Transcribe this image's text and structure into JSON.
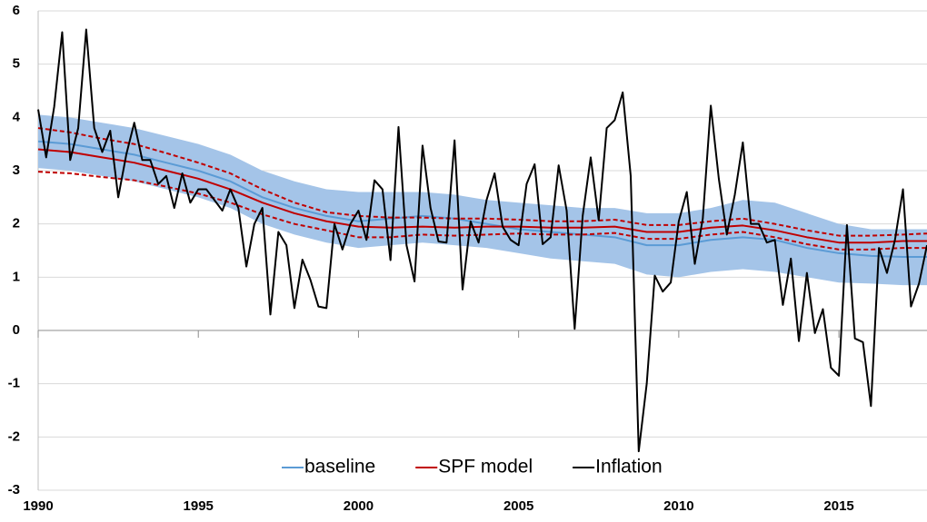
{
  "chart_data": {
    "type": "line",
    "xlim": [
      1990,
      2017.75
    ],
    "ylim": [
      -3,
      6
    ],
    "xticks": [
      1990,
      1995,
      2000,
      2005,
      2010,
      2015
    ],
    "yticks": [
      -3,
      -2,
      -1,
      0,
      1,
      2,
      3,
      4,
      5,
      6
    ],
    "grid": true,
    "legend": "bottom",
    "series": [
      {
        "name": "baseline",
        "color": "#5b9bd5",
        "band_color": "#a4c4e8",
        "x": [
          1990,
          1991,
          1992,
          1993,
          1994,
          1995,
          1996,
          1997,
          1998,
          1999,
          2000,
          2001,
          2002,
          2003,
          2004,
          2005,
          2006,
          2007,
          2008,
          2009,
          2010,
          2011,
          2012,
          2013,
          2014,
          2015,
          2016,
          2017,
          2017.75
        ],
        "values": [
          3.55,
          3.5,
          3.4,
          3.3,
          3.15,
          3.0,
          2.8,
          2.5,
          2.3,
          2.15,
          2.05,
          2.1,
          2.15,
          2.1,
          2.0,
          1.9,
          1.85,
          1.8,
          1.75,
          1.6,
          1.6,
          1.7,
          1.75,
          1.7,
          1.55,
          1.45,
          1.4,
          1.38,
          1.38
        ],
        "upper": [
          4.05,
          4.0,
          3.9,
          3.8,
          3.65,
          3.5,
          3.3,
          3.0,
          2.8,
          2.65,
          2.6,
          2.6,
          2.6,
          2.55,
          2.45,
          2.4,
          2.35,
          2.3,
          2.3,
          2.2,
          2.2,
          2.3,
          2.45,
          2.4,
          2.2,
          2.0,
          1.9,
          1.9,
          1.9
        ],
        "lower": [
          3.05,
          3.0,
          2.9,
          2.8,
          2.65,
          2.5,
          2.3,
          2.0,
          1.8,
          1.65,
          1.55,
          1.6,
          1.65,
          1.6,
          1.55,
          1.45,
          1.35,
          1.3,
          1.25,
          1.05,
          1.0,
          1.1,
          1.15,
          1.1,
          1.0,
          0.9,
          0.88,
          0.85,
          0.85
        ]
      },
      {
        "name": "SPF model",
        "color": "#c00000",
        "x": [
          1990,
          1991,
          1992,
          1993,
          1994,
          1995,
          1996,
          1997,
          1998,
          1999,
          2000,
          2001,
          2002,
          2003,
          2004,
          2005,
          2006,
          2007,
          2008,
          2009,
          2010,
          2011,
          2012,
          2013,
          2014,
          2015,
          2016,
          2017,
          2017.75
        ],
        "values": [
          3.4,
          3.35,
          3.25,
          3.15,
          3.0,
          2.85,
          2.65,
          2.4,
          2.2,
          2.05,
          1.95,
          1.93,
          1.95,
          1.93,
          1.95,
          1.95,
          1.93,
          1.93,
          1.95,
          1.85,
          1.85,
          1.93,
          1.97,
          1.88,
          1.75,
          1.65,
          1.65,
          1.68,
          1.68
        ],
        "upper": [
          3.8,
          3.72,
          3.6,
          3.5,
          3.33,
          3.15,
          2.95,
          2.65,
          2.4,
          2.22,
          2.15,
          2.12,
          2.12,
          2.1,
          2.1,
          2.08,
          2.05,
          2.05,
          2.08,
          1.98,
          1.98,
          2.05,
          2.1,
          2.0,
          1.88,
          1.78,
          1.78,
          1.8,
          1.82
        ],
        "lower": [
          2.98,
          2.95,
          2.88,
          2.82,
          2.7,
          2.57,
          2.4,
          2.18,
          2.0,
          1.88,
          1.75,
          1.75,
          1.8,
          1.78,
          1.8,
          1.82,
          1.8,
          1.8,
          1.83,
          1.72,
          1.72,
          1.8,
          1.85,
          1.75,
          1.62,
          1.52,
          1.52,
          1.55,
          1.55
        ]
      },
      {
        "name": "Inflation",
        "color": "#000000",
        "x": [
          1990,
          1990.25,
          1990.5,
          1990.75,
          1991,
          1991.25,
          1991.5,
          1991.75,
          1992,
          1992.25,
          1992.5,
          1992.75,
          1993,
          1993.25,
          1993.5,
          1993.75,
          1994,
          1994.25,
          1994.5,
          1994.75,
          1995,
          1995.25,
          1995.5,
          1995.75,
          1996,
          1996.25,
          1996.5,
          1996.75,
          1997,
          1997.25,
          1997.5,
          1997.75,
          1998,
          1998.25,
          1998.5,
          1998.75,
          1999,
          1999.25,
          1999.5,
          1999.75,
          2000,
          2000.25,
          2000.5,
          2000.75,
          2001,
          2001.25,
          2001.5,
          2001.75,
          2002,
          2002.25,
          2002.5,
          2002.75,
          2003,
          2003.25,
          2003.5,
          2003.75,
          2004,
          2004.25,
          2004.5,
          2004.75,
          2005,
          2005.25,
          2005.5,
          2005.75,
          2006,
          2006.25,
          2006.5,
          2006.75,
          2007,
          2007.25,
          2007.5,
          2007.75,
          2008,
          2008.25,
          2008.5,
          2008.75,
          2009,
          2009.25,
          2009.5,
          2009.75,
          2010,
          2010.25,
          2010.5,
          2010.75,
          2011,
          2011.25,
          2011.5,
          2011.75,
          2012,
          2012.25,
          2012.5,
          2012.75,
          2013,
          2013.25,
          2013.5,
          2013.75,
          2014,
          2014.25,
          2014.5,
          2014.75,
          2015,
          2015.25,
          2015.5,
          2015.75,
          2016,
          2016.25,
          2016.5,
          2016.75,
          2017,
          2017.25,
          2017.5,
          2017.75
        ],
        "values": [
          4.15,
          3.25,
          4.2,
          5.6,
          3.2,
          3.8,
          5.65,
          3.8,
          3.35,
          3.75,
          2.5,
          3.3,
          3.9,
          3.2,
          3.2,
          2.75,
          2.9,
          2.3,
          2.95,
          2.4,
          2.65,
          2.65,
          2.45,
          2.25,
          2.65,
          2.3,
          1.2,
          2.0,
          2.3,
          0.3,
          1.85,
          1.6,
          0.42,
          1.33,
          0.95,
          0.45,
          0.42,
          2.0,
          1.52,
          2.0,
          2.25,
          1.7,
          2.82,
          2.65,
          1.32,
          3.82,
          1.6,
          0.92,
          3.47,
          2.3,
          1.67,
          1.65,
          3.57,
          0.77,
          2.05,
          1.65,
          2.45,
          2.95,
          1.95,
          1.7,
          1.6,
          2.75,
          3.12,
          1.62,
          1.75,
          3.1,
          2.25,
          0.03,
          2.15,
          3.25,
          2.07,
          3.8,
          3.95,
          4.47,
          2.9,
          -2.27,
          -1.0,
          1.03,
          0.73,
          0.9,
          2.05,
          2.6,
          1.25,
          2.1,
          4.22,
          2.85,
          1.8,
          2.55,
          3.53,
          2.0,
          2.0,
          1.65,
          1.7,
          0.48,
          1.35,
          -0.2,
          1.08,
          -0.05,
          0.4,
          -0.7,
          -0.85,
          1.98,
          -0.15,
          -0.22,
          -1.42,
          1.55,
          1.08,
          1.7,
          2.65,
          0.45,
          0.88,
          1.6
        ]
      }
    ]
  }
}
